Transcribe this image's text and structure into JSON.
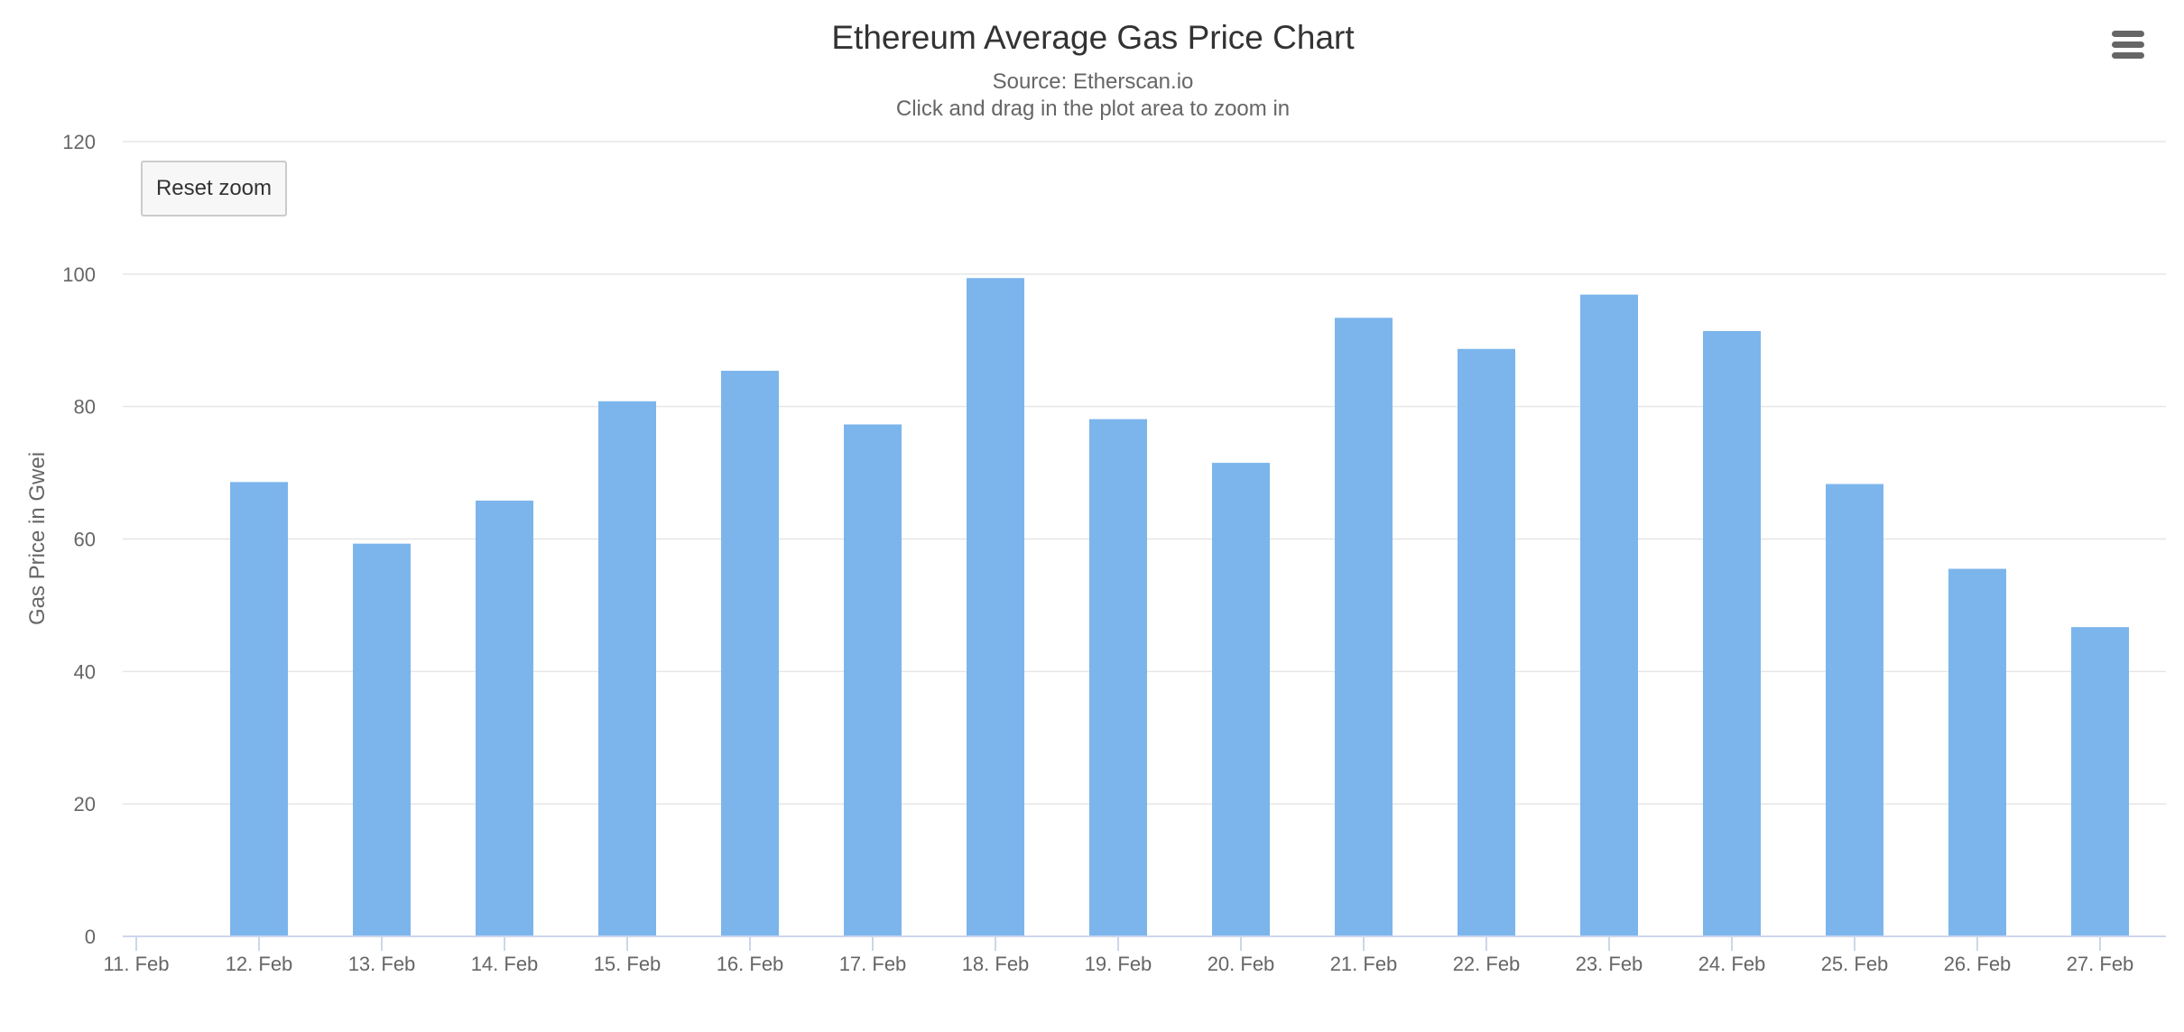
{
  "menu": {
    "icon": "hamburger-menu-icon"
  },
  "reset_zoom_label": "Reset zoom",
  "chart_data": {
    "type": "bar",
    "title": "Ethereum Average Gas Price Chart",
    "subtitle": [
      "Source: Etherscan.io",
      "Click and drag in the plot area to zoom in"
    ],
    "xlabel": "",
    "ylabel": "Gas Price in Gwei",
    "ylim": [
      0,
      120
    ],
    "yticks": [
      0,
      20,
      40,
      60,
      80,
      100,
      120
    ],
    "grid": true,
    "legend": "none",
    "categories": [
      "11. Feb",
      "12. Feb",
      "13. Feb",
      "14. Feb",
      "15. Feb",
      "16. Feb",
      "17. Feb",
      "18. Feb",
      "19. Feb",
      "20. Feb",
      "21. Feb",
      "22. Feb",
      "23. Feb",
      "24. Feb",
      "25. Feb",
      "26. Feb",
      "27. Feb"
    ],
    "series": [
      {
        "name": "Gas Price",
        "color": "#7cb5ec",
        "values": [
          null,
          68.6,
          59.3,
          65.8,
          80.8,
          85.4,
          77.3,
          99.4,
          78.1,
          71.5,
          93.4,
          88.7,
          96.9,
          91.4,
          68.3,
          55.5,
          46.7
        ]
      }
    ]
  }
}
